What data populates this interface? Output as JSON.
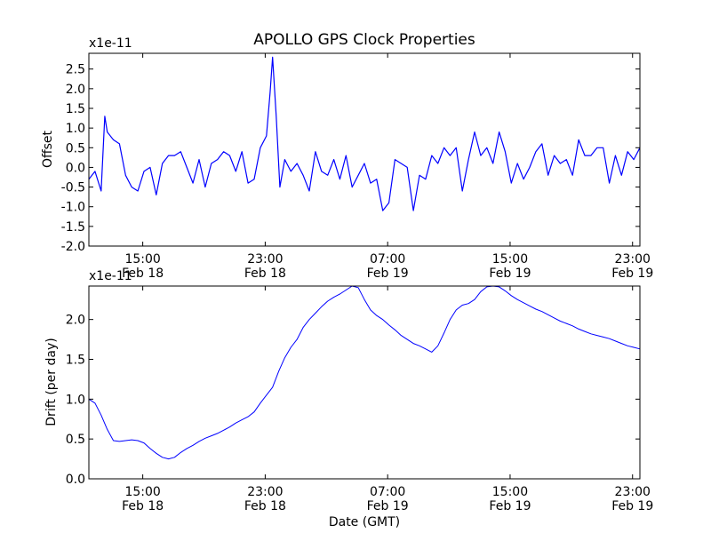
{
  "title": "APOLLO GPS Clock Properties",
  "chart_data": [
    {
      "type": "line",
      "name": "offset",
      "ylabel": "Offset",
      "xlabel": "",
      "exponent_label": "x1e-11",
      "ylim": [
        -2.0,
        2.9
      ],
      "xlim": [
        0,
        45
      ],
      "yticks": [
        -2.0,
        -1.5,
        -1.0,
        -0.5,
        0.0,
        0.5,
        1.0,
        1.5,
        2.0,
        2.5
      ],
      "ytick_labels": [
        "-2.0",
        "-1.5",
        "-1.0",
        "-0.5",
        "0.0",
        "0.5",
        "1.0",
        "1.5",
        "2.0",
        "2.5"
      ],
      "xticks": [
        {
          "hours": 4.4,
          "time": "15:00",
          "date": "Feb 18"
        },
        {
          "hours": 14.4,
          "time": "23:00",
          "date": "Feb 18"
        },
        {
          "hours": 24.4,
          "time": "07:00",
          "date": "Feb 19"
        },
        {
          "hours": 34.4,
          "time": "15:00",
          "date": "Feb 19"
        },
        {
          "hours": 44.4,
          "time": "23:00",
          "date": "Feb 19"
        }
      ],
      "color": "#0000ff",
      "series": [
        {
          "name": "offset",
          "x": [
            0,
            0.5,
            1,
            1.3,
            1.5,
            2,
            2.5,
            3,
            3.5,
            4,
            4.5,
            5,
            5.5,
            6,
            6.5,
            7,
            7.5,
            8,
            8.5,
            9,
            9.5,
            10,
            10.5,
            11,
            11.5,
            12,
            12.5,
            13,
            13.5,
            14,
            14.5,
            14.8,
            15,
            15.3,
            15.6,
            16,
            16.5,
            17,
            17.5,
            18,
            18.5,
            19,
            19.5,
            20,
            20.5,
            21,
            21.5,
            22,
            22.5,
            23,
            23.5,
            24,
            24.5,
            25,
            25.5,
            26,
            26.5,
            27,
            27.5,
            28,
            28.5,
            29,
            29.5,
            30,
            30.5,
            31,
            31.5,
            32,
            32.5,
            33,
            33.5,
            34,
            34.5,
            35,
            35.5,
            36,
            36.5,
            37,
            37.5,
            38,
            38.5,
            39,
            39.5,
            40,
            40.5,
            41,
            41.5,
            42,
            42.5,
            43,
            43.5,
            44,
            44.5,
            45
          ],
          "values": [
            -0.3,
            -0.1,
            -0.6,
            1.3,
            0.9,
            0.7,
            0.6,
            -0.2,
            -0.5,
            -0.6,
            -0.1,
            0.0,
            -0.7,
            0.1,
            0.3,
            0.3,
            0.4,
            0.0,
            -0.4,
            0.2,
            -0.5,
            0.1,
            0.2,
            0.4,
            0.3,
            -0.1,
            0.4,
            -0.4,
            -0.3,
            0.5,
            0.8,
            1.9,
            2.8,
            1.3,
            -0.5,
            0.2,
            -0.1,
            0.1,
            -0.2,
            -0.6,
            0.4,
            -0.1,
            -0.2,
            0.2,
            -0.3,
            0.3,
            -0.5,
            -0.2,
            0.1,
            -0.4,
            -0.3,
            -1.1,
            -0.9,
            0.2,
            0.1,
            0.0,
            -1.1,
            -0.2,
            -0.3,
            0.3,
            0.1,
            0.5,
            0.3,
            0.5,
            -0.6,
            0.2,
            0.9,
            0.3,
            0.5,
            0.1,
            0.9,
            0.4,
            -0.4,
            0.1,
            -0.3,
            0.0,
            0.4,
            0.6,
            -0.2,
            0.3,
            0.1,
            0.2,
            -0.2,
            0.7,
            0.3,
            0.3,
            0.5,
            0.5,
            -0.4,
            0.3,
            -0.2,
            0.4,
            0.2,
            0.5
          ]
        }
      ]
    },
    {
      "type": "line",
      "name": "drift",
      "ylabel": "Drift (per day)",
      "xlabel": "Date (GMT)",
      "exponent_label": "x1e-11",
      "ylim": [
        0.0,
        2.42
      ],
      "xlim": [
        0,
        45
      ],
      "yticks": [
        0.0,
        0.5,
        1.0,
        1.5,
        2.0
      ],
      "ytick_labels": [
        "0.0",
        "0.5",
        "1.0",
        "1.5",
        "2.0"
      ],
      "xticks": [
        {
          "hours": 4.4,
          "time": "15:00",
          "date": "Feb 18"
        },
        {
          "hours": 14.4,
          "time": "23:00",
          "date": "Feb 18"
        },
        {
          "hours": 24.4,
          "time": "07:00",
          "date": "Feb 19"
        },
        {
          "hours": 34.4,
          "time": "15:00",
          "date": "Feb 19"
        },
        {
          "hours": 44.4,
          "time": "23:00",
          "date": "Feb 19"
        }
      ],
      "color": "#0000ff",
      "series": [
        {
          "name": "drift",
          "x": [
            0,
            0.5,
            1,
            1.5,
            2,
            2.5,
            3,
            3.5,
            4,
            4.5,
            5,
            5.5,
            6,
            6.5,
            7,
            7.5,
            8,
            8.5,
            9,
            9.5,
            10,
            10.5,
            11,
            11.5,
            12,
            12.5,
            13,
            13.5,
            14,
            14.5,
            15,
            15.5,
            16,
            16.5,
            17,
            17.5,
            18,
            18.5,
            19,
            19.5,
            20,
            20.5,
            21,
            21.5,
            22,
            22.5,
            23,
            23.5,
            24,
            24.5,
            25,
            25.5,
            26,
            26.5,
            27,
            27.5,
            28,
            28.5,
            29,
            29.5,
            30,
            30.5,
            31,
            31.5,
            32,
            32.5,
            33,
            33.5,
            34,
            34.5,
            35,
            35.5,
            36,
            36.5,
            37,
            37.5,
            38,
            38.5,
            39,
            39.5,
            40,
            40.5,
            41,
            41.5,
            42,
            42.5,
            43,
            43.5,
            44,
            44.5,
            45
          ],
          "values": [
            1.0,
            0.95,
            0.8,
            0.62,
            0.48,
            0.47,
            0.48,
            0.49,
            0.48,
            0.45,
            0.38,
            0.32,
            0.27,
            0.25,
            0.27,
            0.33,
            0.38,
            0.42,
            0.47,
            0.51,
            0.54,
            0.57,
            0.61,
            0.65,
            0.7,
            0.74,
            0.78,
            0.84,
            0.95,
            1.05,
            1.15,
            1.35,
            1.52,
            1.65,
            1.75,
            1.9,
            2.0,
            2.08,
            2.16,
            2.23,
            2.28,
            2.32,
            2.37,
            2.42,
            2.4,
            2.25,
            2.12,
            2.05,
            2.0,
            1.93,
            1.87,
            1.8,
            1.75,
            1.7,
            1.67,
            1.63,
            1.59,
            1.67,
            1.83,
            2.0,
            2.12,
            2.18,
            2.2,
            2.25,
            2.35,
            2.41,
            2.42,
            2.41,
            2.36,
            2.3,
            2.25,
            2.21,
            2.17,
            2.13,
            2.1,
            2.06,
            2.02,
            1.98,
            1.95,
            1.92,
            1.88,
            1.85,
            1.82,
            1.8,
            1.78,
            1.76,
            1.73,
            1.7,
            1.67,
            1.65,
            1.63
          ]
        }
      ]
    }
  ]
}
